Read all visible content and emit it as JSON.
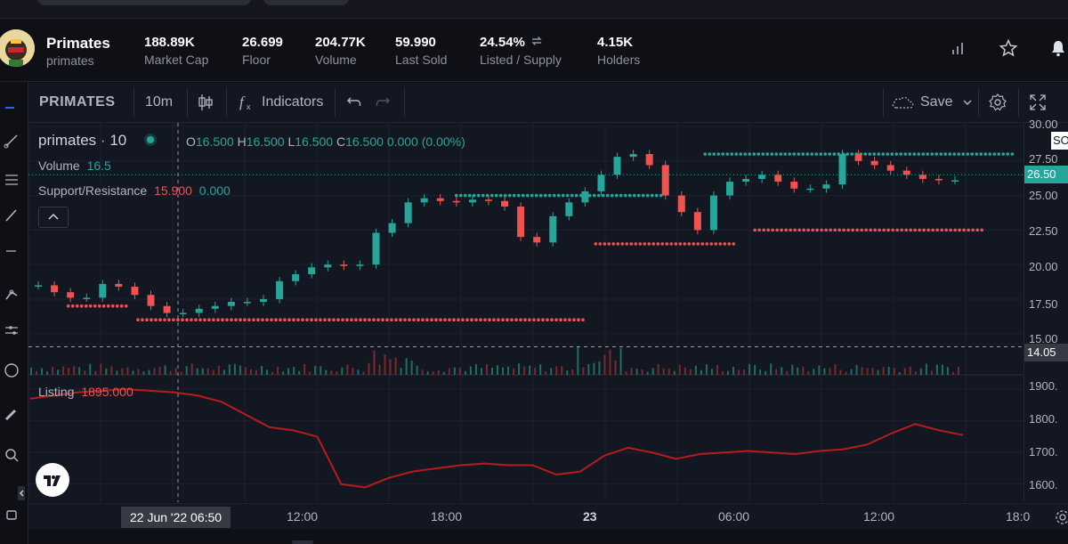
{
  "collection": {
    "name": "Primates",
    "slug": "primates"
  },
  "stats": [
    {
      "value": "188.89K",
      "label": "Market Cap"
    },
    {
      "value": "26.699",
      "label": "Floor"
    },
    {
      "value": "204.77K",
      "label": "Volume"
    },
    {
      "value": "59.990",
      "label": "Last Sold"
    },
    {
      "value": "24.54%",
      "label": "Listed / Supply"
    },
    {
      "value": "4.15K",
      "label": "Holders"
    }
  ],
  "toolbar": {
    "symbol": "PRIMATES",
    "interval": "10m",
    "indicators_label": "Indicators",
    "save_label": "Save"
  },
  "legend": {
    "title": "primates",
    "sep": "·",
    "interval": "10",
    "ohlc": {
      "o_key": "O",
      "o": "16.500",
      "h_key": "H",
      "h": "16.500",
      "l_key": "L",
      "l": "16.500",
      "c_key": "C",
      "c": "16.500",
      "change": "0.000 (0.00%)"
    },
    "volume_label": "Volume",
    "volume_value": "16.5",
    "sr_label": "Support/Resistance",
    "sr_value": "15.900",
    "sr_change": "0.000",
    "listing_label": "Listing",
    "listing_value": "1895.000"
  },
  "price_axis": {
    "ticks": [
      "30.00",
      "27.50",
      "25.00",
      "22.50",
      "20.00",
      "17.50",
      "15.00",
      "1900.",
      "1800.",
      "1700.",
      "1600."
    ],
    "current_price": "26.50",
    "crosshair_price": "14.05",
    "partial_label": "SO"
  },
  "time_axis": {
    "ticks": [
      "12:00",
      "18:00",
      "23",
      "06:00",
      "12:00",
      "18:0"
    ],
    "crosshair_label": "22 Jun '22  06:50"
  },
  "colors": {
    "up": "#26a69a",
    "down": "#ef5350",
    "listing": "#b71c1c",
    "background": "#131722"
  },
  "chart_data": {
    "type": "candlestick",
    "price_range": [
      13.5,
      30.0
    ],
    "close_series_approx": [
      18.5,
      18.0,
      17.6,
      17.6,
      18.6,
      18.4,
      17.8,
      17.0,
      16.5,
      16.5,
      16.8,
      17.0,
      17.3,
      17.3,
      17.5,
      18.8,
      19.3,
      19.8,
      20.0,
      19.9,
      20.0,
      22.3,
      23.0,
      24.5,
      24.8,
      24.6,
      24.5,
      24.7,
      24.6,
      24.2,
      22.0,
      21.6,
      23.5,
      24.5,
      25.3,
      26.5,
      27.8,
      28.0,
      27.2,
      25.0,
      23.8,
      22.5,
      25.0,
      26.0,
      26.2,
      26.5,
      26.0,
      25.5,
      25.5,
      25.8,
      28.0,
      27.5,
      27.2,
      26.8,
      26.5,
      26.2,
      26.1,
      26.1
    ],
    "support_resistance_levels": [
      {
        "value": 17.0
      },
      {
        "value": 16.0
      },
      {
        "value": 25.0
      },
      {
        "value": 21.5
      },
      {
        "value": 28.0
      },
      {
        "value": 22.5
      }
    ],
    "listing": {
      "range": [
        1560,
        1920
      ],
      "values": [
        1870,
        1880,
        1890,
        1895,
        1900,
        1895,
        1890,
        1880,
        1860,
        1820,
        1780,
        1770,
        1750,
        1600,
        1590,
        1620,
        1640,
        1650,
        1660,
        1665,
        1660,
        1660,
        1630,
        1640,
        1690,
        1715,
        1700,
        1680,
        1695,
        1700,
        1705,
        1700,
        1695,
        1705,
        1710,
        1725,
        1760,
        1790,
        1770,
        1755
      ]
    }
  }
}
